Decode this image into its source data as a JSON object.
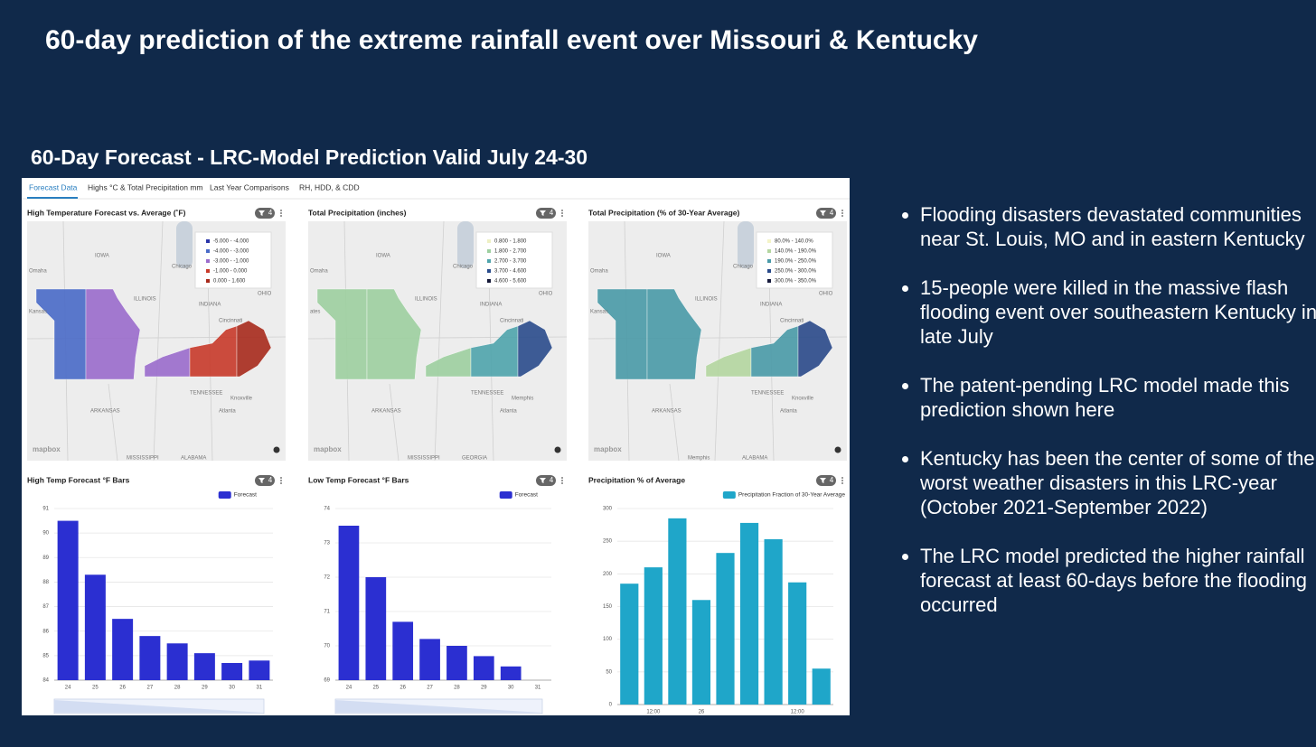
{
  "title": "60-day prediction of the extreme rainfall event over Missouri & Kentucky",
  "subtitle": "60-Day Forecast - LRC-Model Prediction Valid July 24-30",
  "tabs": [
    "Forecast Data",
    "Highs °C & Total Precipitation mm",
    "Last Year Comparisons",
    "RH, HDD, & CDD"
  ],
  "maps": [
    {
      "title": "High Temperature Forecast vs. Average (˚F)",
      "badge": "4",
      "logo": "mapbox",
      "legend": [
        {
          "label": "-5.000 - -4.000",
          "color": "#2a35a8"
        },
        {
          "label": "-4.000 - -3.000",
          "color": "#4a6bc8"
        },
        {
          "label": "-3.000 - -1.000",
          "color": "#9a6ccc"
        },
        {
          "label": "-1.000 - 0.000",
          "color": "#c83a2a"
        },
        {
          "label": "0.000 - 1.600",
          "color": "#a82a1c"
        }
      ],
      "pieces": [
        1,
        2,
        2,
        3,
        4
      ],
      "labels": [
        "IOWA",
        "Chicago",
        "Omaha",
        "ILLINOIS",
        "INDIANA",
        "OHIO",
        "Cincinnati",
        "Kansas",
        "TENNESSEE",
        "Knoxville",
        "ARKANSAS",
        "Atlanta",
        "MISSISSIPPI",
        "ALABAMA"
      ]
    },
    {
      "title": "Total Precipitation (inches)",
      "badge": "4",
      "logo": "mapbox",
      "legend": [
        {
          "label": "0.800 - 1.800",
          "color": "#eef0c4"
        },
        {
          "label": "1.800 - 2.700",
          "color": "#9ed0a0"
        },
        {
          "label": "2.700 - 3.700",
          "color": "#4fa4ac"
        },
        {
          "label": "3.700 - 4.600",
          "color": "#2a4c8c"
        },
        {
          "label": "4.600 - 5.600",
          "color": "#141838"
        }
      ],
      "pieces": [
        1,
        1,
        1,
        2,
        3
      ],
      "labels": [
        "IOWA",
        "Chicago",
        "Omaha",
        "ILLINOIS",
        "INDIANA",
        "OHIO",
        "Cincinnati",
        "ates",
        "TENNESSEE",
        "Memphis",
        "ARKANSAS",
        "Atlanta",
        "MISSISSIPPI",
        "GEORGIA"
      ]
    },
    {
      "title": "Total Precipitation (% of 30-Year Average)",
      "badge": "4",
      "logo": "mapbox",
      "legend": [
        {
          "label": "80.0% - 140.0%",
          "color": "#f4f4c8"
        },
        {
          "label": "140.0% - 190.0%",
          "color": "#b4d6a0"
        },
        {
          "label": "190.0% - 250.0%",
          "color": "#4a9aa8"
        },
        {
          "label": "250.0% - 300.0%",
          "color": "#2a4a8a"
        },
        {
          "label": "300.0% - 350.0%",
          "color": "#161a3c"
        }
      ],
      "pieces": [
        2,
        2,
        1,
        2,
        3
      ],
      "labels": [
        "IOWA",
        "Chicago",
        "Omaha",
        "ILLINOIS",
        "INDIANA",
        "OHIO",
        "Cincinnati",
        "Kansas",
        "TENNESSEE",
        "Knoxville",
        "ARKANSAS",
        "Atlanta",
        "Memphis",
        "ALABAMA"
      ]
    }
  ],
  "charts": [
    {
      "type": "bar",
      "title": "High Temp Forecast °F Bars",
      "badge": "4",
      "categories": [
        "24",
        "25",
        "26",
        "27",
        "28",
        "29",
        "30",
        "31"
      ],
      "series": [
        {
          "name": "Forecast",
          "color": "#2b2fd1",
          "values": [
            90.5,
            88.3,
            86.5,
            85.8,
            85.5,
            85.1,
            84.7,
            84.8
          ]
        }
      ],
      "ylim": [
        84,
        91
      ],
      "yticks": [
        84,
        85,
        86,
        87,
        88,
        89,
        90,
        91
      ],
      "grid": true
    },
    {
      "type": "bar",
      "title": "Low Temp Forecast °F Bars",
      "badge": "4",
      "categories": [
        "24",
        "25",
        "26",
        "27",
        "28",
        "29",
        "30",
        "31"
      ],
      "series": [
        {
          "name": "Forecast",
          "color": "#2b2fd1",
          "values": [
            73.5,
            72.0,
            70.7,
            70.2,
            70.0,
            69.7,
            69.4,
            null
          ]
        }
      ],
      "ylim": [
        69,
        74
      ],
      "yticks": [
        69,
        70,
        71,
        72,
        73,
        74
      ],
      "grid": true
    },
    {
      "type": "bar",
      "title": "Precipitation % of Average",
      "badge": "4",
      "categories": [
        null,
        "12:00",
        null,
        "26",
        null,
        null,
        null,
        "12:00",
        null
      ],
      "series": [
        {
          "name": "Precipitation Fraction of 30-Year Average",
          "color": "#1fa6c9",
          "values": [
            185,
            210,
            285,
            160,
            232,
            278,
            253,
            187,
            55
          ]
        }
      ],
      "ylim": [
        0,
        300
      ],
      "yticks": [
        0,
        50,
        100,
        150,
        200,
        250,
        300
      ],
      "grid": true
    }
  ],
  "bullets": [
    "Flooding disasters devastated communities near St. Louis, MO and in eastern Kentucky",
    "15-people were killed in the massive flash flooding event over southeastern Kentucky in late July",
    "The patent-pending LRC model made this prediction shown here",
    "Kentucky has been the center of some of the worst weather disasters in this LRC-year (October 2021-September 2022)",
    "The LRC model predicted the higher rainfall forecast at least 60-days before the flooding occurred"
  ]
}
